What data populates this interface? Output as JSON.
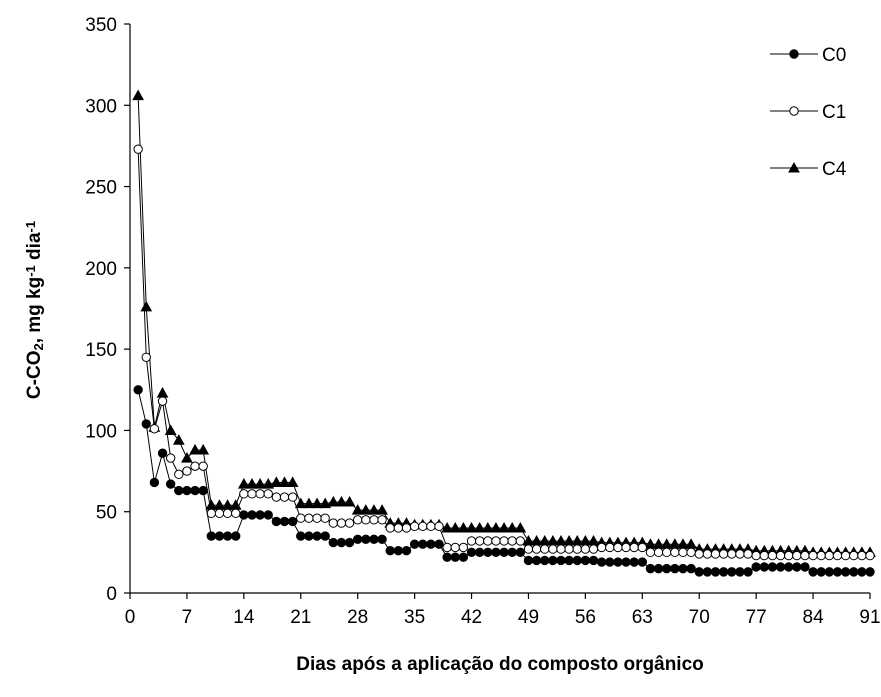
{
  "chart_data": {
    "type": "line",
    "xlabel": "Dias após a aplicação do composto orgânico",
    "ylabel": {
      "parts": [
        {
          "text": "C-CO",
          "style": "normal"
        },
        {
          "text": "2",
          "style": "sub"
        },
        {
          "text": ", mg kg",
          "style": "normal"
        },
        {
          "text": "-1",
          "style": "sup"
        },
        {
          "text": " dia",
          "style": "normal"
        },
        {
          "text": "-1",
          "style": "sup"
        }
      ]
    },
    "xlim": [
      0,
      91
    ],
    "ylim": [
      0,
      350
    ],
    "xticks": [
      "0",
      "7",
      "14",
      "21",
      "28",
      "35",
      "42",
      "49",
      "56",
      "63",
      "70",
      "77",
      "84",
      "91"
    ],
    "yticks": [
      "0",
      "50",
      "100",
      "150",
      "200",
      "250",
      "300",
      "350"
    ],
    "grid": false,
    "legend_position": "top-right",
    "series": [
      {
        "name": "C0",
        "marker": "filled-circle",
        "x": [
          1,
          2,
          3,
          4,
          5,
          6,
          7,
          8,
          9,
          10,
          11,
          12,
          13,
          14,
          15,
          16,
          17,
          18,
          19,
          20,
          21,
          22,
          23,
          24,
          25,
          26,
          27,
          28,
          29,
          30,
          31,
          32,
          33,
          34,
          35,
          36,
          37,
          38,
          39,
          40,
          41,
          42,
          43,
          44,
          45,
          46,
          47,
          48,
          49,
          50,
          51,
          52,
          53,
          54,
          55,
          56,
          57,
          58,
          59,
          60,
          61,
          62,
          63,
          64,
          65,
          66,
          67,
          68,
          69,
          70,
          71,
          72,
          73,
          74,
          75,
          76,
          77,
          78,
          79,
          80,
          81,
          82,
          83,
          84,
          85,
          86,
          87,
          88,
          89,
          90,
          91
        ],
        "y": [
          125,
          104,
          68,
          86,
          67,
          63,
          63,
          63,
          63,
          35,
          35,
          35,
          35,
          48,
          48,
          48,
          48,
          44,
          44,
          44,
          35,
          35,
          35,
          35,
          31,
          31,
          31,
          33,
          33,
          33,
          33,
          26,
          26,
          26,
          30,
          30,
          30,
          30,
          22,
          22,
          22,
          25,
          25,
          25,
          25,
          25,
          25,
          25,
          20,
          20,
          20,
          20,
          20,
          20,
          20,
          20,
          20,
          19,
          19,
          19,
          19,
          19,
          19,
          15,
          15,
          15,
          15,
          15,
          15,
          13,
          13,
          13,
          13,
          13,
          13,
          13,
          16,
          16,
          16,
          16,
          16,
          16,
          16,
          13,
          13,
          13,
          13,
          13,
          13,
          13,
          13
        ]
      },
      {
        "name": "C1",
        "marker": "open-circle",
        "x": [
          1,
          2,
          3,
          4,
          5,
          6,
          7,
          8,
          9,
          10,
          11,
          12,
          13,
          14,
          15,
          16,
          17,
          18,
          19,
          20,
          21,
          22,
          23,
          24,
          25,
          26,
          27,
          28,
          29,
          30,
          31,
          32,
          33,
          34,
          35,
          36,
          37,
          38,
          39,
          40,
          41,
          42,
          43,
          44,
          45,
          46,
          47,
          48,
          49,
          50,
          51,
          52,
          53,
          54,
          55,
          56,
          57,
          58,
          59,
          60,
          61,
          62,
          63,
          64,
          65,
          66,
          67,
          68,
          69,
          70,
          71,
          72,
          73,
          74,
          75,
          76,
          77,
          78,
          79,
          80,
          81,
          82,
          83,
          84,
          85,
          86,
          87,
          88,
          89,
          90,
          91
        ],
        "y": [
          273,
          145,
          101,
          118,
          83,
          73,
          75,
          78,
          78,
          49,
          49,
          49,
          49,
          61,
          61,
          61,
          61,
          59,
          59,
          59,
          46,
          46,
          46,
          46,
          43,
          43,
          43,
          45,
          45,
          45,
          45,
          40,
          40,
          40,
          41,
          41,
          41,
          41,
          28,
          28,
          28,
          32,
          32,
          32,
          32,
          32,
          32,
          32,
          27,
          27,
          27,
          27,
          27,
          27,
          27,
          27,
          27,
          28,
          28,
          28,
          28,
          28,
          28,
          25,
          25,
          25,
          25,
          25,
          25,
          24,
          24,
          24,
          24,
          24,
          24,
          24,
          23,
          23,
          23,
          23,
          23,
          23,
          23,
          23,
          23,
          23,
          23,
          23,
          23,
          23,
          23
        ]
      },
      {
        "name": "C4",
        "marker": "filled-triangle",
        "x": [
          1,
          2,
          3,
          4,
          5,
          6,
          7,
          8,
          9,
          10,
          11,
          12,
          13,
          14,
          15,
          16,
          17,
          18,
          19,
          20,
          21,
          22,
          23,
          24,
          25,
          26,
          27,
          28,
          29,
          30,
          31,
          32,
          33,
          34,
          35,
          36,
          37,
          38,
          39,
          40,
          41,
          42,
          43,
          44,
          45,
          46,
          47,
          48,
          49,
          50,
          51,
          52,
          53,
          54,
          55,
          56,
          57,
          58,
          59,
          60,
          61,
          62,
          63,
          64,
          65,
          66,
          67,
          68,
          69,
          70,
          71,
          72,
          73,
          74,
          75,
          76,
          77,
          78,
          79,
          80,
          81,
          82,
          83,
          84,
          85,
          86,
          87,
          88,
          89,
          90,
          91
        ],
        "y": [
          306,
          176,
          102,
          123,
          100,
          94,
          83,
          88,
          88,
          54,
          54,
          54,
          54,
          67,
          67,
          67,
          67,
          68,
          68,
          68,
          55,
          55,
          55,
          55,
          56,
          56,
          56,
          51,
          51,
          51,
          51,
          43,
          43,
          43,
          42,
          42,
          42,
          42,
          40,
          40,
          40,
          40,
          40,
          40,
          40,
          40,
          40,
          40,
          32,
          32,
          32,
          32,
          32,
          32,
          32,
          32,
          32,
          31,
          31,
          31,
          31,
          31,
          31,
          30,
          30,
          30,
          30,
          30,
          30,
          27,
          27,
          27,
          27,
          27,
          27,
          27,
          26,
          26,
          26,
          26,
          26,
          26,
          26,
          25,
          25,
          25,
          25,
          25,
          25,
          25,
          25
        ]
      }
    ]
  }
}
